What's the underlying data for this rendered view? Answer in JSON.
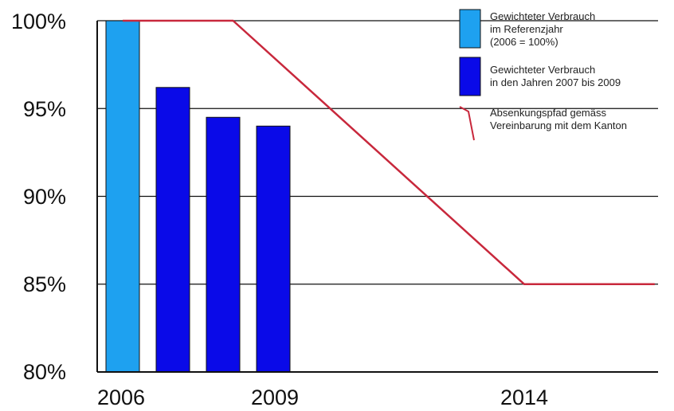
{
  "chart_data": {
    "type": "bar",
    "x_ticks": [
      "2006",
      "2009",
      "2014"
    ],
    "y_ticks": [
      "100%",
      "95%",
      "90%",
      "85%",
      "80%"
    ],
    "ylim": [
      80,
      100
    ],
    "grid": true,
    "bars": [
      {
        "year": 2006,
        "value": 100.0,
        "series": "reference"
      },
      {
        "year": 2007,
        "value": 96.2,
        "series": "actual"
      },
      {
        "year": 2008,
        "value": 94.5,
        "series": "actual"
      },
      {
        "year": 2009,
        "value": 94.0,
        "series": "actual"
      }
    ],
    "line": {
      "series": "path",
      "points": [
        {
          "year": 2006,
          "value": 100
        },
        {
          "year": 2008.2,
          "value": 100
        },
        {
          "year": 2014,
          "value": 85
        },
        {
          "year": 2016.6,
          "value": 85
        }
      ]
    },
    "legend": {
      "placement": "top-right",
      "entries": [
        {
          "key": "reference",
          "lines": [
            "Gewichteter Verbrauch",
            "im Referenzjahr",
            "(2006 = 100%)"
          ]
        },
        {
          "key": "actual",
          "lines": [
            "Gewichteter Verbrauch",
            "in den Jahren 2007 bis 2009"
          ]
        },
        {
          "key": "path",
          "lines": [
            "Absenkungspfad gemäss",
            "Vereinbarung mit dem Kanton"
          ]
        }
      ]
    },
    "colors": {
      "reference": "#1ea1f0",
      "actual": "#0a0ae8",
      "path": "#c8283c",
      "grid": "#111111"
    }
  }
}
